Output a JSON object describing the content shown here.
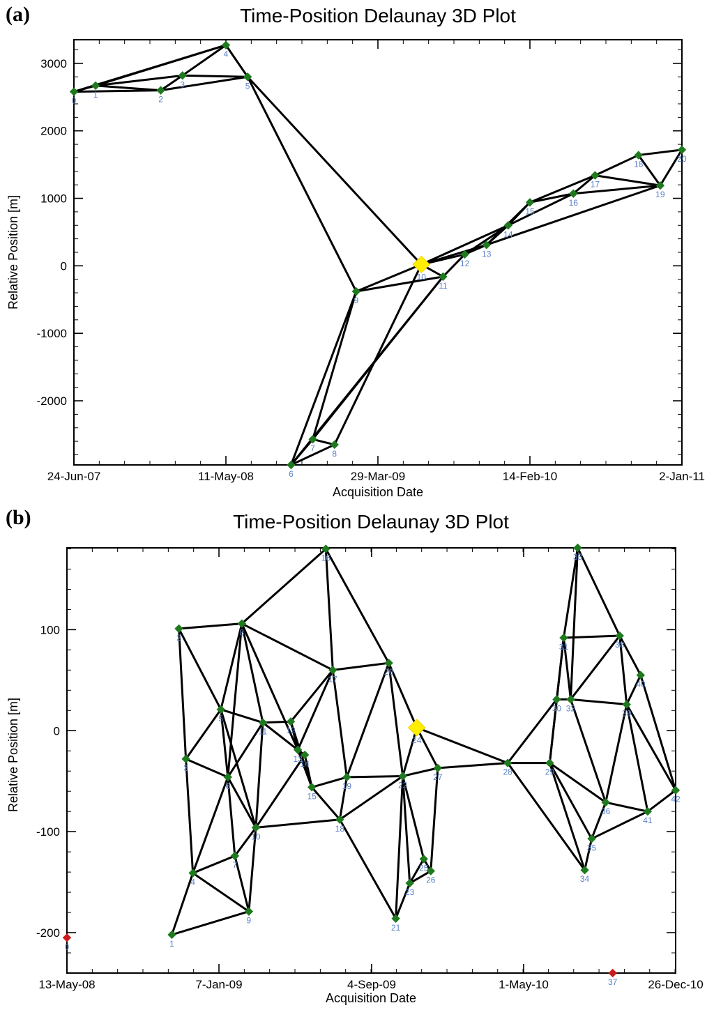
{
  "chart_data": [
    {
      "panel": "(a)",
      "type": "scatter",
      "title": "Time-Position Delaunay 3D Plot",
      "xlabel": "Acquisition Date",
      "ylabel": "Relative Position [m]",
      "x_ticks": [
        {
          "value": 0,
          "label": "24-Jun-07"
        },
        {
          "value": 322,
          "label": "11-May-08"
        },
        {
          "value": 644,
          "label": "29-Mar-09"
        },
        {
          "value": 966,
          "label": "14-Feb-10"
        },
        {
          "value": 1288,
          "label": "2-Jan-11"
        }
      ],
      "y_ticks": [
        {
          "value": -2000,
          "label": "-2000"
        },
        {
          "value": -1000,
          "label": "-1000"
        },
        {
          "value": 0,
          "label": "0"
        },
        {
          "value": 1000,
          "label": "1000"
        },
        {
          "value": 2000,
          "label": "2000"
        },
        {
          "value": 3000,
          "label": "3000"
        }
      ],
      "xlim": [
        0,
        1288
      ],
      "ylim": [
        -2950,
        3350
      ],
      "node_color": "#1f7a1f",
      "master_color": "#ffee00",
      "edge_color": "#000000",
      "label_color": "#5b82c8",
      "points": [
        {
          "id": "0",
          "x": 0,
          "y": 2580
        },
        {
          "id": "1",
          "x": 46,
          "y": 2670
        },
        {
          "id": "2",
          "x": 184,
          "y": 2600
        },
        {
          "id": "3",
          "x": 230,
          "y": 2820
        },
        {
          "id": "4",
          "x": 322,
          "y": 3270
        },
        {
          "id": "5",
          "x": 368,
          "y": 2800
        },
        {
          "id": "6",
          "x": 460,
          "y": -2950
        },
        {
          "id": "7",
          "x": 506,
          "y": -2570
        },
        {
          "id": "8",
          "x": 552,
          "y": -2650
        },
        {
          "id": "9",
          "x": 598,
          "y": -380
        },
        {
          "id": "10",
          "x": 736,
          "y": 20,
          "master": true
        },
        {
          "id": "11",
          "x": 782,
          "y": -160
        },
        {
          "id": "12",
          "x": 828,
          "y": 170
        },
        {
          "id": "13",
          "x": 874,
          "y": 310
        },
        {
          "id": "14",
          "x": 920,
          "y": 600
        },
        {
          "id": "15",
          "x": 966,
          "y": 940
        },
        {
          "id": "16",
          "x": 1058,
          "y": 1070
        },
        {
          "id": "17",
          "x": 1104,
          "y": 1340
        },
        {
          "id": "18",
          "x": 1196,
          "y": 1640
        },
        {
          "id": "19",
          "x": 1242,
          "y": 1190
        },
        {
          "id": "20",
          "x": 1288,
          "y": 1720
        }
      ],
      "edges": [
        [
          "0",
          "1"
        ],
        [
          "0",
          "2"
        ],
        [
          "0",
          "4"
        ],
        [
          "1",
          "2"
        ],
        [
          "1",
          "3"
        ],
        [
          "1",
          "4"
        ],
        [
          "2",
          "3"
        ],
        [
          "2",
          "5"
        ],
        [
          "3",
          "5"
        ],
        [
          "3",
          "4"
        ],
        [
          "4",
          "5"
        ],
        [
          "5",
          "9"
        ],
        [
          "5",
          "10"
        ],
        [
          "9",
          "10"
        ],
        [
          "9",
          "6"
        ],
        [
          "9",
          "7"
        ],
        [
          "6",
          "7"
        ],
        [
          "6",
          "8"
        ],
        [
          "7",
          "8"
        ],
        [
          "6",
          "11"
        ],
        [
          "7",
          "11"
        ],
        [
          "8",
          "10"
        ],
        [
          "9",
          "11"
        ],
        [
          "10",
          "11"
        ],
        [
          "10",
          "12"
        ],
        [
          "10",
          "13"
        ],
        [
          "10",
          "14"
        ],
        [
          "11",
          "12"
        ],
        [
          "12",
          "13"
        ],
        [
          "12",
          "14"
        ],
        [
          "13",
          "14"
        ],
        [
          "13",
          "15"
        ],
        [
          "14",
          "15"
        ],
        [
          "14",
          "16"
        ],
        [
          "13",
          "19"
        ],
        [
          "15",
          "16"
        ],
        [
          "15",
          "17"
        ],
        [
          "16",
          "17"
        ],
        [
          "16",
          "19"
        ],
        [
          "17",
          "19"
        ],
        [
          "17",
          "18"
        ],
        [
          "18",
          "19"
        ],
        [
          "18",
          "20"
        ],
        [
          "19",
          "20"
        ]
      ]
    },
    {
      "panel": "(b)",
      "type": "scatter",
      "title": "Time-Position Delaunay 3D Plot",
      "xlabel": "Acquisition Date",
      "ylabel": "Relative Position [m]",
      "x_ticks": [
        {
          "value": 0,
          "label": "13-May-08"
        },
        {
          "value": 239,
          "label": "7-Jan-09"
        },
        {
          "value": 479,
          "label": "4-Sep-09"
        },
        {
          "value": 718,
          "label": "1-May-10"
        },
        {
          "value": 957,
          "label": "26-Dec-10"
        }
      ],
      "y_ticks": [
        {
          "value": -200,
          "label": "-200"
        },
        {
          "value": -100,
          "label": "-100"
        },
        {
          "value": 0,
          "label": "0"
        },
        {
          "value": 100,
          "label": "100"
        }
      ],
      "xlim": [
        0,
        957
      ],
      "ylim": [
        -240,
        181
      ],
      "node_color": "#1f7a1f",
      "master_color": "#ffee00",
      "outlier_color": "#cc1a1a",
      "edge_color": "#000000",
      "label_color": "#5b82c8",
      "points": [
        {
          "id": "0",
          "x": 0,
          "y": -205,
          "outlier": true
        },
        {
          "id": "1",
          "x": 165,
          "y": -202
        },
        {
          "id": "2",
          "x": 176,
          "y": 101
        },
        {
          "id": "3",
          "x": 187,
          "y": -28
        },
        {
          "id": "4",
          "x": 198,
          "y": -141
        },
        {
          "id": "5",
          "x": 242,
          "y": 21
        },
        {
          "id": "6",
          "x": 253,
          "y": -46
        },
        {
          "id": "7",
          "x": 264,
          "y": -124
        },
        {
          "id": "8",
          "x": 275,
          "y": 106
        },
        {
          "id": "9",
          "x": 286,
          "y": -179
        },
        {
          "id": "10",
          "x": 297,
          "y": -96
        },
        {
          "id": "11",
          "x": 308,
          "y": 8
        },
        {
          "id": "12",
          "x": 352,
          "y": 9
        },
        {
          "id": "13",
          "x": 363,
          "y": -19
        },
        {
          "id": "14",
          "x": 374,
          "y": -24
        },
        {
          "id": "15",
          "x": 385,
          "y": -56
        },
        {
          "id": "16",
          "x": 407,
          "y": 180
        },
        {
          "id": "17",
          "x": 418,
          "y": 60
        },
        {
          "id": "18",
          "x": 429,
          "y": -88
        },
        {
          "id": "19",
          "x": 440,
          "y": -46
        },
        {
          "id": "20",
          "x": 506,
          "y": 67
        },
        {
          "id": "21",
          "x": 517,
          "y": -186
        },
        {
          "id": "22",
          "x": 528,
          "y": -45
        },
        {
          "id": "23",
          "x": 539,
          "y": -151
        },
        {
          "id": "24",
          "x": 550,
          "y": 3,
          "master": true
        },
        {
          "id": "25",
          "x": 561,
          "y": -127
        },
        {
          "id": "26",
          "x": 572,
          "y": -139
        },
        {
          "id": "27",
          "x": 583,
          "y": -37
        },
        {
          "id": "28",
          "x": 693,
          "y": -32
        },
        {
          "id": "29",
          "x": 759,
          "y": -32
        },
        {
          "id": "30",
          "x": 770,
          "y": 31
        },
        {
          "id": "31",
          "x": 781,
          "y": 92
        },
        {
          "id": "32",
          "x": 792,
          "y": 31
        },
        {
          "id": "33",
          "x": 803,
          "y": 181
        },
        {
          "id": "34",
          "x": 814,
          "y": -138
        },
        {
          "id": "35",
          "x": 825,
          "y": -107
        },
        {
          "id": "36",
          "x": 847,
          "y": -71
        },
        {
          "id": "37",
          "x": 858,
          "y": -240,
          "outlier": true
        },
        {
          "id": "38",
          "x": 869,
          "y": 94
        },
        {
          "id": "39",
          "x": 880,
          "y": 26
        },
        {
          "id": "40",
          "x": 902,
          "y": 55
        },
        {
          "id": "41",
          "x": 913,
          "y": -80
        },
        {
          "id": "42",
          "x": 957,
          "y": -59
        }
      ],
      "edges": [
        [
          "1",
          "4"
        ],
        [
          "1",
          "9"
        ],
        [
          "2",
          "3"
        ],
        [
          "2",
          "8"
        ],
        [
          "2",
          "5"
        ],
        [
          "3",
          "4"
        ],
        [
          "3",
          "5"
        ],
        [
          "3",
          "6"
        ],
        [
          "4",
          "6"
        ],
        [
          "4",
          "7"
        ],
        [
          "4",
          "9"
        ],
        [
          "5",
          "6"
        ],
        [
          "5",
          "8"
        ],
        [
          "5",
          "11"
        ],
        [
          "5",
          "10"
        ],
        [
          "6",
          "7"
        ],
        [
          "6",
          "8"
        ],
        [
          "6",
          "10"
        ],
        [
          "6",
          "11"
        ],
        [
          "7",
          "9"
        ],
        [
          "7",
          "10"
        ],
        [
          "9",
          "10"
        ],
        [
          "8",
          "11"
        ],
        [
          "8",
          "13"
        ],
        [
          "8",
          "16"
        ],
        [
          "8",
          "17"
        ],
        [
          "10",
          "11"
        ],
        [
          "10",
          "14"
        ],
        [
          "10",
          "18"
        ],
        [
          "11",
          "12"
        ],
        [
          "11",
          "13"
        ],
        [
          "12",
          "13"
        ],
        [
          "12",
          "15"
        ],
        [
          "12",
          "17"
        ],
        [
          "13",
          "14"
        ],
        [
          "13",
          "15"
        ],
        [
          "13",
          "17"
        ],
        [
          "14",
          "15"
        ],
        [
          "15",
          "18"
        ],
        [
          "15",
          "19"
        ],
        [
          "16",
          "17"
        ],
        [
          "16",
          "20"
        ],
        [
          "17",
          "19"
        ],
        [
          "17",
          "20"
        ],
        [
          "18",
          "19"
        ],
        [
          "18",
          "21"
        ],
        [
          "18",
          "22"
        ],
        [
          "19",
          "20"
        ],
        [
          "19",
          "22"
        ],
        [
          "20",
          "22"
        ],
        [
          "20",
          "24"
        ],
        [
          "21",
          "22"
        ],
        [
          "21",
          "23"
        ],
        [
          "22",
          "23"
        ],
        [
          "22",
          "24"
        ],
        [
          "22",
          "25"
        ],
        [
          "22",
          "27"
        ],
        [
          "23",
          "25"
        ],
        [
          "23",
          "26"
        ],
        [
          "24",
          "27"
        ],
        [
          "24",
          "28"
        ],
        [
          "25",
          "26"
        ],
        [
          "26",
          "27"
        ],
        [
          "27",
          "28"
        ],
        [
          "28",
          "29"
        ],
        [
          "28",
          "30"
        ],
        [
          "28",
          "34"
        ],
        [
          "29",
          "30"
        ],
        [
          "29",
          "31"
        ],
        [
          "29",
          "34"
        ],
        [
          "29",
          "35"
        ],
        [
          "29",
          "36"
        ],
        [
          "30",
          "31"
        ],
        [
          "30",
          "32"
        ],
        [
          "31",
          "32"
        ],
        [
          "31",
          "33"
        ],
        [
          "31",
          "38"
        ],
        [
          "32",
          "33"
        ],
        [
          "32",
          "38"
        ],
        [
          "32",
          "39"
        ],
        [
          "32",
          "36"
        ],
        [
          "33",
          "38"
        ],
        [
          "34",
          "35"
        ],
        [
          "35",
          "36"
        ],
        [
          "35",
          "41"
        ],
        [
          "36",
          "39"
        ],
        [
          "36",
          "41"
        ],
        [
          "38",
          "40"
        ],
        [
          "38",
          "39"
        ],
        [
          "39",
          "40"
        ],
        [
          "39",
          "41"
        ],
        [
          "39",
          "42"
        ],
        [
          "40",
          "42"
        ],
        [
          "41",
          "42"
        ]
      ]
    }
  ]
}
